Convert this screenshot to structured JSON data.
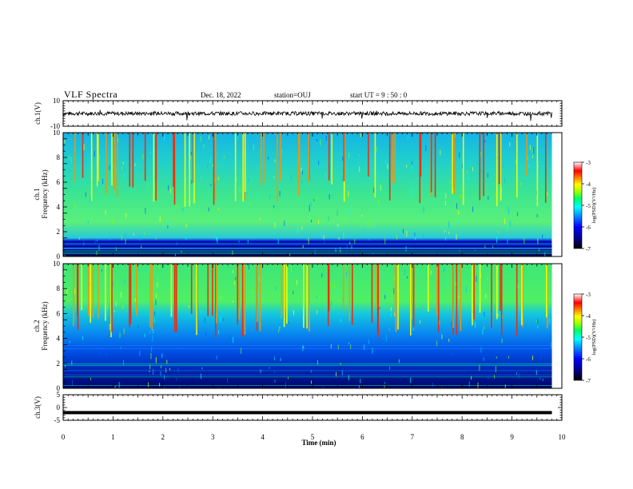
{
  "header": {
    "title": "VLF Spectra",
    "date": "Dec. 18, 2022",
    "station": "station=OUJ",
    "start_ut": "start UT =  9 : 50 : 0"
  },
  "colors": {
    "waveform": "#000000",
    "background": "#ffffff",
    "colormap": [
      "#000000",
      "#00008b",
      "#0000ff",
      "#0080ff",
      "#00ffff",
      "#00ff80",
      "#80ff00",
      "#ffff00",
      "#ff8000",
      "#ff0000",
      "#ffffff"
    ]
  },
  "chart_data": [
    {
      "type": "line",
      "panel": "ch1-waveform",
      "ylabel": "ch.1(V)",
      "ylim": [
        -10,
        10
      ],
      "yticks": [
        "10",
        "-10"
      ],
      "xlim": [
        0,
        10
      ],
      "note_level": 0
    },
    {
      "type": "heatmap",
      "panel": "ch1-spectrogram",
      "ylabel_line1": "ch.1",
      "ylabel_line2": "Frequency (kHz)",
      "ylim": [
        0,
        10
      ],
      "yticks": [
        "0",
        "2",
        "4",
        "6",
        "8",
        "10"
      ],
      "xlim": [
        0,
        10
      ],
      "colorbar": {
        "label": "log(PSD)(V²/Hz)",
        "range": [
          -7,
          -3
        ],
        "ticks": [
          "-3",
          "-4",
          "-5",
          "-6",
          "-7"
        ]
      },
      "bursts_min": [
        0.3,
        0.6,
        0.95,
        1.35,
        1.75,
        2.2,
        2.55,
        3.0,
        3.55,
        3.95,
        4.4,
        4.8,
        5.3,
        5.7,
        6.2,
        6.6,
        7.05,
        7.4,
        7.9,
        8.3,
        8.7,
        9.2,
        9.6
      ]
    },
    {
      "type": "heatmap",
      "panel": "ch2-spectrogram",
      "ylabel_line1": "ch.2",
      "ylabel_line2": "Frequency (kHz)",
      "ylim": [
        0,
        10
      ],
      "yticks": [
        "0",
        "2",
        "4",
        "6",
        "8",
        "10"
      ],
      "xlim": [
        0,
        10
      ],
      "colorbar": {
        "label": "log(PSD)(V²/Hz)",
        "range": [
          -7,
          -3
        ],
        "ticks": [
          "-3",
          "-4",
          "-5",
          "-6",
          "-7"
        ]
      },
      "bursts_min": [
        0.3,
        0.6,
        0.95,
        1.35,
        1.75,
        2.2,
        2.55,
        3.0,
        3.55,
        3.95,
        4.4,
        4.8,
        5.3,
        5.7,
        6.2,
        6.6,
        7.05,
        7.4,
        7.9,
        8.3,
        8.7,
        9.2,
        9.6
      ]
    },
    {
      "type": "line",
      "panel": "ch3-waveform",
      "ylabel": "ch.3(V)",
      "ylim": [
        -5,
        5
      ],
      "yticks": [
        "5",
        "0",
        "-5"
      ],
      "xlim": [
        0,
        10
      ],
      "level": -2
    }
  ],
  "xaxis": {
    "label": "Time (min)",
    "ticks": [
      "0",
      "1",
      "2",
      "3",
      "4",
      "5",
      "6",
      "7",
      "8",
      "9",
      "10"
    ]
  }
}
